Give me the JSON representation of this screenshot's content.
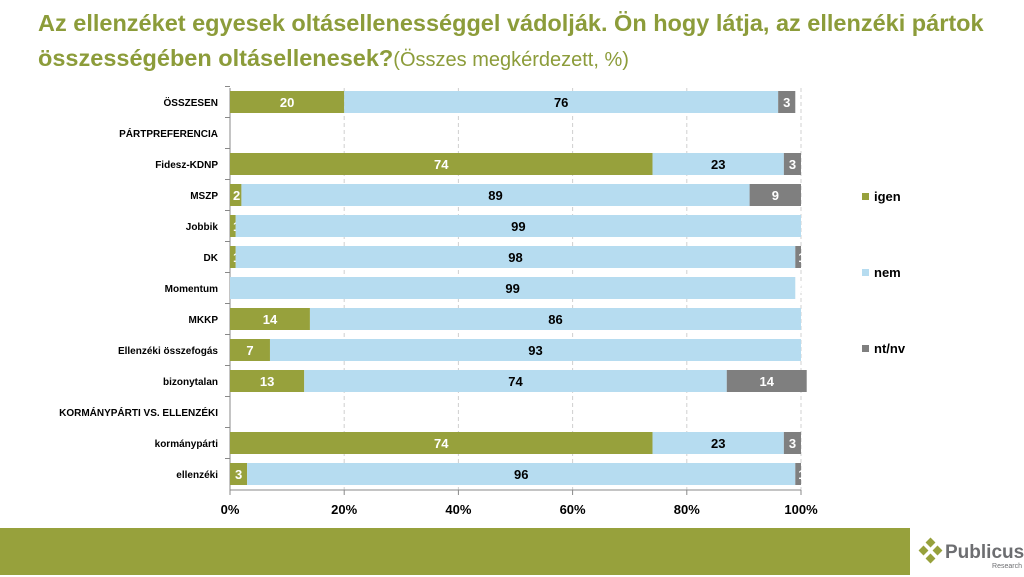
{
  "title": {
    "main": "Az ellenzéket egyesek oltásellenességgel vádolják. Ön hogy látja, az ellenzéki pártok összességében oltásellenesek?",
    "sub": "(Összes megkérdezett, %)"
  },
  "logo": {
    "name": "Publicus",
    "sub": "Research"
  },
  "chart_data": {
    "type": "bar",
    "orientation": "horizontal",
    "stacked": "percent",
    "categories": [
      "ÖSSZESEN",
      "PÁRTPREFERENCIA",
      "Fidesz-KDNP",
      "MSZP",
      "Jobbik",
      "DK",
      "Momentum",
      "MKKP",
      "Ellenzéki összefogás",
      "bizonytalan",
      "KORMÁNYPÁRTI VS. ELLENZÉKI",
      "kormánypárti",
      "ellenzéki"
    ],
    "series": [
      {
        "name": "igen",
        "color": "#97a13c",
        "values": [
          20,
          null,
          74,
          2,
          1,
          1,
          0,
          14,
          7,
          13,
          null,
          74,
          3
        ]
      },
      {
        "name": "nem",
        "color": "#b6dcf0",
        "values": [
          76,
          null,
          23,
          89,
          99,
          98,
          99,
          86,
          93,
          74,
          null,
          23,
          96
        ]
      },
      {
        "name": "nt/nv",
        "color": "#7f7f7f",
        "values": [
          3,
          null,
          3,
          9,
          0,
          1,
          0,
          0,
          0,
          14,
          null,
          3,
          1
        ]
      }
    ],
    "xlim": [
      0,
      100
    ],
    "xticks": [
      "0%",
      "20%",
      "40%",
      "60%",
      "80%",
      "100%"
    ],
    "grid": "vertical dashed",
    "legend": "right"
  }
}
